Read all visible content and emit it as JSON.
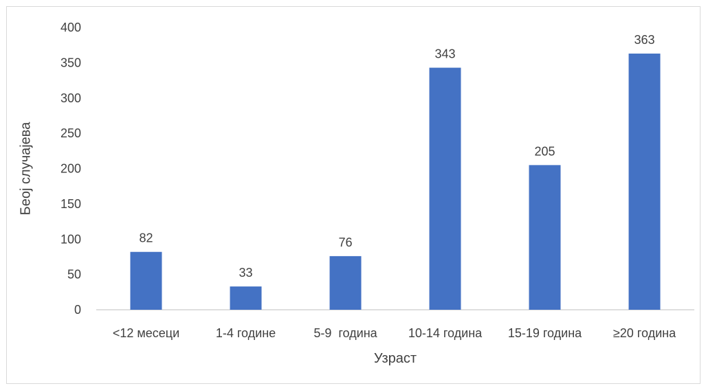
{
  "chart_data": {
    "type": "bar",
    "title": "",
    "xlabel": "Узраст",
    "ylabel": "Беој случајева",
    "categories": [
      "<12 месеци",
      "1-4 године",
      "5-9  година",
      "10-14 година",
      "15-19 година",
      "≥20 година"
    ],
    "values": [
      82,
      33,
      76,
      343,
      205,
      363
    ],
    "ylim": [
      0,
      400
    ],
    "yticks": [
      0,
      50,
      100,
      150,
      200,
      250,
      300,
      350,
      400
    ],
    "grid": false,
    "legend": "none",
    "bar_color": "#4472c4",
    "data_labels": true
  }
}
